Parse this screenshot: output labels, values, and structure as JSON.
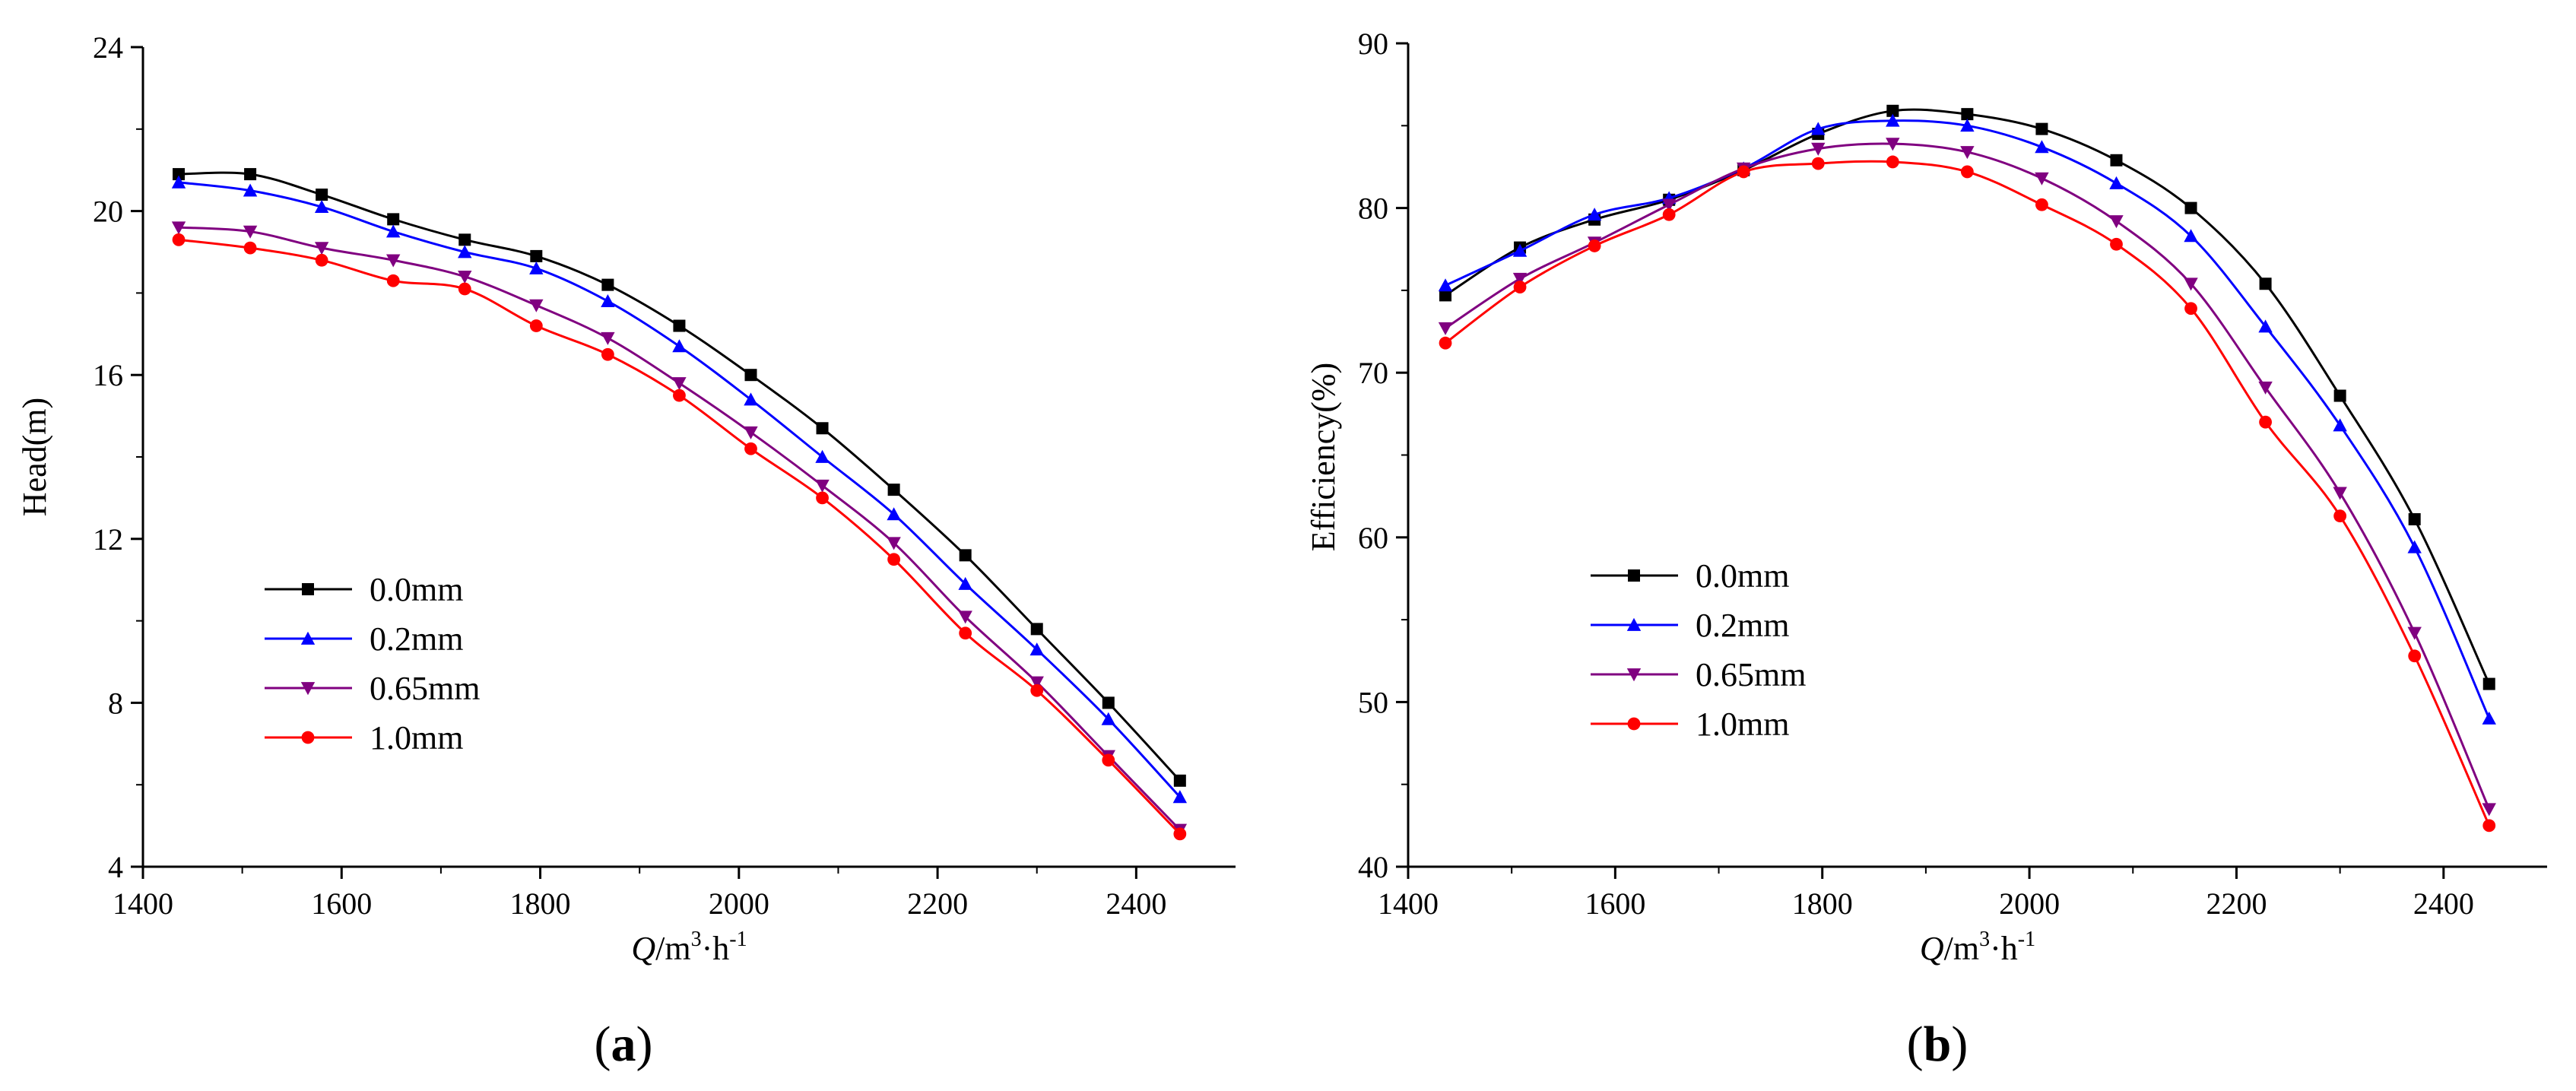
{
  "chart_data": [
    {
      "type": "line",
      "panel_label": "(a)",
      "ylabel": "Head(m)",
      "xlabel": {
        "italic": "Q",
        "rest": "/m",
        "sup1": "3",
        "mid": "·h",
        "sup2": "-1"
      },
      "xlim": [
        1400,
        2500
      ],
      "ylim": [
        4,
        24
      ],
      "xticks": [
        1400,
        1600,
        1800,
        2000,
        2200,
        2400
      ],
      "yticks": [
        4,
        8,
        12,
        16,
        20,
        24
      ],
      "legend_position": "lower-left",
      "x": [
        1436,
        1508,
        1580,
        1652,
        1724,
        1796,
        1868,
        1940,
        2012,
        2084,
        2156,
        2228,
        2300,
        2372,
        2444
      ],
      "series": [
        {
          "name": "0.0mm",
          "color": "#000000",
          "marker": "square",
          "values": [
            20.9,
            20.9,
            20.4,
            19.8,
            19.3,
            18.9,
            18.2,
            17.2,
            16.0,
            14.7,
            13.2,
            11.6,
            9.8,
            8.0,
            6.1
          ]
        },
        {
          "name": "0.2mm",
          "color": "#0000ff",
          "marker": "triangle-up",
          "values": [
            20.7,
            20.5,
            20.1,
            19.5,
            19.0,
            18.6,
            17.8,
            16.7,
            15.4,
            14.0,
            12.6,
            10.9,
            9.3,
            7.6,
            5.7
          ]
        },
        {
          "name": "0.65mm",
          "color": "#800080",
          "marker": "triangle-down",
          "values": [
            19.6,
            19.5,
            19.1,
            18.8,
            18.4,
            17.7,
            16.9,
            15.8,
            14.6,
            13.3,
            11.9,
            10.1,
            8.5,
            6.7,
            4.9
          ]
        },
        {
          "name": "1.0mm",
          "color": "#ff0000",
          "marker": "circle",
          "values": [
            19.3,
            19.1,
            18.8,
            18.3,
            18.1,
            17.2,
            16.5,
            15.5,
            14.2,
            13.0,
            11.5,
            9.7,
            8.3,
            6.6,
            4.8
          ]
        }
      ]
    },
    {
      "type": "line",
      "panel_label": "(b)",
      "ylabel": "Efficiency(%)",
      "xlabel": {
        "italic": "Q",
        "rest": "/m",
        "sup1": "3",
        "mid": "·h",
        "sup2": "-1"
      },
      "xlim": [
        1400,
        2500
      ],
      "ylim": [
        40,
        90
      ],
      "xticks": [
        1400,
        1600,
        1800,
        2000,
        2200,
        2400
      ],
      "yticks": [
        40,
        50,
        60,
        70,
        80,
        90
      ],
      "legend_position": "lower-left",
      "x": [
        1436,
        1508,
        1580,
        1652,
        1724,
        1796,
        1868,
        1940,
        2012,
        2084,
        2156,
        2228,
        2300,
        2372,
        2444
      ],
      "series": [
        {
          "name": "0.0mm",
          "color": "#000000",
          "marker": "square",
          "values": [
            74.7,
            77.6,
            79.3,
            80.5,
            82.3,
            84.5,
            85.9,
            85.7,
            84.8,
            82.9,
            80.0,
            75.4,
            68.6,
            61.1,
            51.1
          ]
        },
        {
          "name": "0.2mm",
          "color": "#0000ff",
          "marker": "triangle-up",
          "values": [
            75.3,
            77.4,
            79.6,
            80.6,
            82.4,
            84.8,
            85.3,
            85.0,
            83.7,
            81.5,
            78.3,
            72.8,
            66.8,
            59.4,
            49.0
          ]
        },
        {
          "name": "0.65mm",
          "color": "#800080",
          "marker": "triangle-down",
          "values": [
            72.7,
            75.7,
            77.9,
            80.2,
            82.4,
            83.6,
            83.9,
            83.4,
            81.8,
            79.2,
            75.4,
            69.1,
            62.7,
            54.2,
            43.5
          ]
        },
        {
          "name": "1.0mm",
          "color": "#ff0000",
          "marker": "circle",
          "values": [
            71.8,
            75.2,
            77.7,
            79.6,
            82.2,
            82.7,
            82.8,
            82.2,
            80.2,
            77.8,
            73.9,
            67.0,
            61.3,
            52.8,
            42.5
          ]
        }
      ]
    }
  ]
}
